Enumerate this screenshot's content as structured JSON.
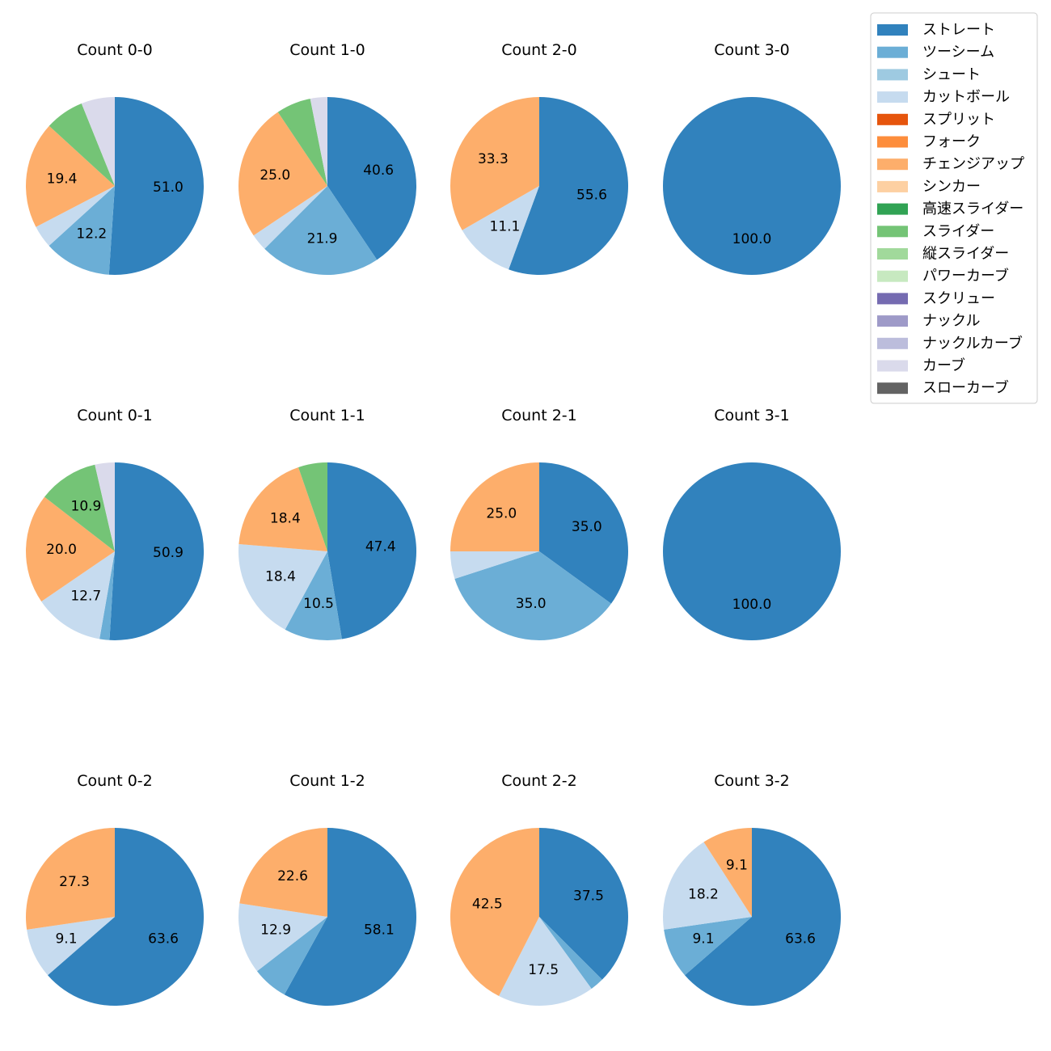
{
  "colors": {
    "ストレート": "#3182bd",
    "ツーシーム": "#6baed6",
    "シュート": "#9ecae1",
    "カットボール": "#c6dbef",
    "スプリット": "#e6550d",
    "フォーク": "#fd8d3c",
    "チェンジアップ": "#fdae6b",
    "シンカー": "#fdd0a2",
    "高速スライダー": "#31a354",
    "スライダー": "#74c476",
    "縦スライダー": "#a1d99b",
    "パワーカーブ": "#c7e9c0",
    "スクリュー": "#756bb1",
    "ナックル": "#9e9ac8",
    "ナックルカーブ": "#bcbddc",
    "カーブ": "#dadaeb",
    "スローカーブ": "#636363"
  },
  "chart_data": {
    "type": "pie",
    "legend": {
      "placement": "top-right",
      "entries": [
        "ストレート",
        "ツーシーム",
        "シュート",
        "カットボール",
        "スプリット",
        "フォーク",
        "チェンジアップ",
        "シンカー",
        "高速スライダー",
        "スライダー",
        "縦スライダー",
        "パワーカーブ",
        "スクリュー",
        "ナックル",
        "ナックルカーブ",
        "カーブ",
        "スローカーブ"
      ]
    },
    "charts": [
      {
        "title": "Count 0-0",
        "slices": [
          {
            "pitch": "ストレート",
            "value": 51.0,
            "label": "51.0"
          },
          {
            "pitch": "ツーシーム",
            "value": 12.2,
            "label": "12.2"
          },
          {
            "pitch": "カットボール",
            "value": 4.1,
            "label": ""
          },
          {
            "pitch": "チェンジアップ",
            "value": 19.4,
            "label": "19.4"
          },
          {
            "pitch": "スライダー",
            "value": 7.1,
            "label": ""
          },
          {
            "pitch": "カーブ",
            "value": 6.1,
            "label": ""
          }
        ]
      },
      {
        "title": "Count 1-0",
        "slices": [
          {
            "pitch": "ストレート",
            "value": 40.6,
            "label": "40.6"
          },
          {
            "pitch": "ツーシーム",
            "value": 21.9,
            "label": "21.9"
          },
          {
            "pitch": "カットボール",
            "value": 3.1,
            "label": ""
          },
          {
            "pitch": "チェンジアップ",
            "value": 25.0,
            "label": "25.0"
          },
          {
            "pitch": "スライダー",
            "value": 6.3,
            "label": ""
          },
          {
            "pitch": "カーブ",
            "value": 3.1,
            "label": ""
          }
        ]
      },
      {
        "title": "Count 2-0",
        "slices": [
          {
            "pitch": "ストレート",
            "value": 55.6,
            "label": "55.6"
          },
          {
            "pitch": "カットボール",
            "value": 11.1,
            "label": "11.1"
          },
          {
            "pitch": "チェンジアップ",
            "value": 33.3,
            "label": "33.3"
          }
        ]
      },
      {
        "title": "Count 3-0",
        "slices": [
          {
            "pitch": "ストレート",
            "value": 100.0,
            "label": "100.0"
          }
        ]
      },
      {
        "title": "Count 0-1",
        "slices": [
          {
            "pitch": "ストレート",
            "value": 50.9,
            "label": "50.9"
          },
          {
            "pitch": "ツーシーム",
            "value": 1.8,
            "label": ""
          },
          {
            "pitch": "カットボール",
            "value": 12.7,
            "label": "12.7"
          },
          {
            "pitch": "チェンジアップ",
            "value": 20.0,
            "label": "20.0"
          },
          {
            "pitch": "スライダー",
            "value": 10.9,
            "label": "10.9"
          },
          {
            "pitch": "カーブ",
            "value": 3.6,
            "label": ""
          }
        ]
      },
      {
        "title": "Count 1-1",
        "slices": [
          {
            "pitch": "ストレート",
            "value": 47.4,
            "label": "47.4"
          },
          {
            "pitch": "ツーシーム",
            "value": 10.5,
            "label": "10.5"
          },
          {
            "pitch": "カットボール",
            "value": 18.4,
            "label": "18.4"
          },
          {
            "pitch": "チェンジアップ",
            "value": 18.4,
            "label": "18.4"
          },
          {
            "pitch": "スライダー",
            "value": 5.3,
            "label": ""
          }
        ]
      },
      {
        "title": "Count 2-1",
        "slices": [
          {
            "pitch": "ストレート",
            "value": 35.0,
            "label": "35.0"
          },
          {
            "pitch": "ツーシーム",
            "value": 35.0,
            "label": "35.0"
          },
          {
            "pitch": "カットボール",
            "value": 5.0,
            "label": ""
          },
          {
            "pitch": "チェンジアップ",
            "value": 25.0,
            "label": "25.0"
          }
        ]
      },
      {
        "title": "Count 3-1",
        "slices": [
          {
            "pitch": "ストレート",
            "value": 100.0,
            "label": "100.0"
          }
        ]
      },
      {
        "title": "Count 0-2",
        "slices": [
          {
            "pitch": "ストレート",
            "value": 63.6,
            "label": "63.6"
          },
          {
            "pitch": "カットボール",
            "value": 9.1,
            "label": "9.1"
          },
          {
            "pitch": "チェンジアップ",
            "value": 27.3,
            "label": "27.3"
          }
        ]
      },
      {
        "title": "Count 1-2",
        "slices": [
          {
            "pitch": "ストレート",
            "value": 58.1,
            "label": "58.1"
          },
          {
            "pitch": "ツーシーム",
            "value": 6.5,
            "label": ""
          },
          {
            "pitch": "カットボール",
            "value": 12.9,
            "label": "12.9"
          },
          {
            "pitch": "チェンジアップ",
            "value": 22.6,
            "label": "22.6"
          }
        ]
      },
      {
        "title": "Count 2-2",
        "slices": [
          {
            "pitch": "ストレート",
            "value": 37.5,
            "label": "37.5"
          },
          {
            "pitch": "ツーシーム",
            "value": 2.5,
            "label": ""
          },
          {
            "pitch": "カットボール",
            "value": 17.5,
            "label": "17.5"
          },
          {
            "pitch": "チェンジアップ",
            "value": 42.5,
            "label": "42.5"
          }
        ]
      },
      {
        "title": "Count 3-2",
        "slices": [
          {
            "pitch": "ストレート",
            "value": 63.6,
            "label": "63.6"
          },
          {
            "pitch": "ツーシーム",
            "value": 9.1,
            "label": "9.1"
          },
          {
            "pitch": "カットボール",
            "value": 18.2,
            "label": "18.2"
          },
          {
            "pitch": "チェンジアップ",
            "value": 9.1,
            "label": "9.1"
          }
        ]
      }
    ]
  }
}
